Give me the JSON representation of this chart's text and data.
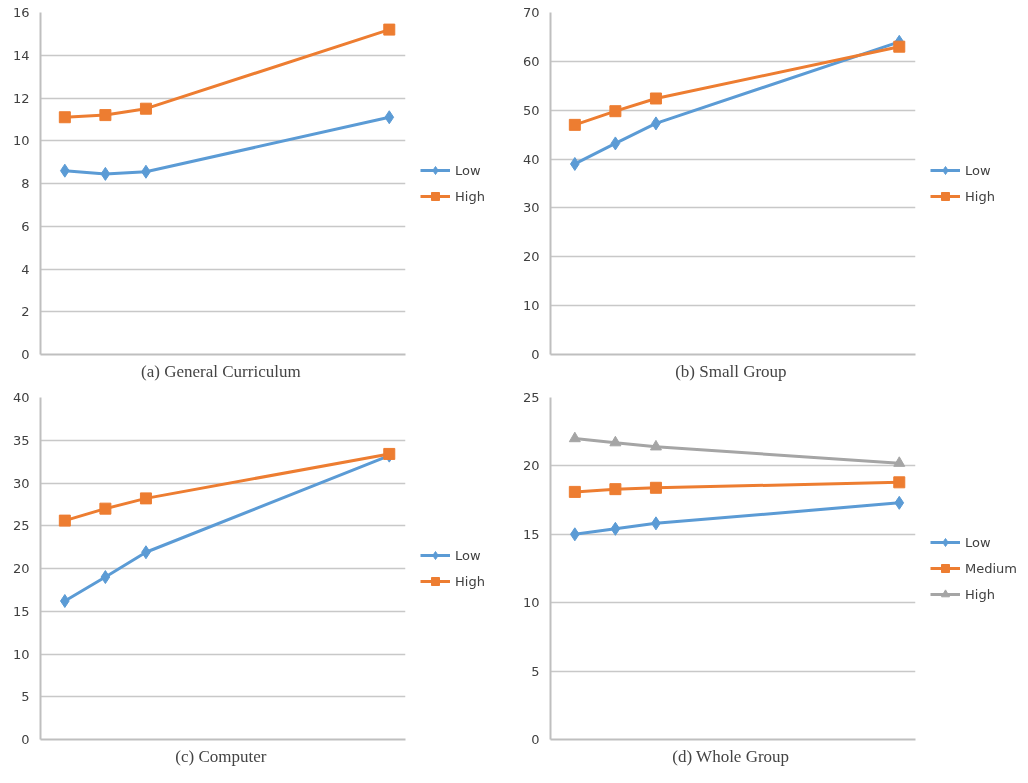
{
  "chart_data": [
    {
      "type": "line",
      "title": "(a)  General Curriculum",
      "categories": [
        null,
        null,
        null,
        null,
        null,
        null,
        null,
        null,
        null
      ],
      "ylim": [
        0,
        16
      ],
      "yticks": [
        0,
        2,
        4,
        6,
        8,
        10,
        12,
        14,
        16
      ],
      "grid": "y",
      "legend": "right",
      "series": [
        {
          "name": "Low",
          "color": "#5b9bd5",
          "marker": "diamond",
          "values": [
            8.6,
            8.45,
            8.55,
            null,
            null,
            null,
            null,
            null,
            11.1
          ]
        },
        {
          "name": "High",
          "color": "#ed7d31",
          "marker": "square",
          "values": [
            11.1,
            11.2,
            11.5,
            null,
            null,
            null,
            null,
            null,
            15.2
          ]
        }
      ]
    },
    {
      "type": "line",
      "title": "(b)  Small Group",
      "categories": [
        null,
        null,
        null,
        null,
        null,
        null,
        null,
        null,
        null
      ],
      "ylim": [
        0,
        70
      ],
      "yticks": [
        0,
        10,
        20,
        30,
        40,
        50,
        60,
        70
      ],
      "grid": "y",
      "legend": "right",
      "series": [
        {
          "name": "Low",
          "color": "#5b9bd5",
          "marker": "diamond",
          "values": [
            39,
            43.2,
            47.3,
            null,
            null,
            null,
            null,
            null,
            64
          ]
        },
        {
          "name": "High",
          "color": "#ed7d31",
          "marker": "square",
          "values": [
            47,
            49.8,
            52.4,
            null,
            null,
            null,
            null,
            null,
            63
          ]
        }
      ]
    },
    {
      "type": "line",
      "title": "(c)  Computer",
      "categories": [
        null,
        null,
        null,
        null,
        null,
        null,
        null,
        null,
        null
      ],
      "ylim": [
        0,
        40
      ],
      "yticks": [
        0,
        5,
        10,
        15,
        20,
        25,
        30,
        35,
        40
      ],
      "grid": "y",
      "legend": "right",
      "series": [
        {
          "name": "Low",
          "color": "#5b9bd5",
          "marker": "diamond",
          "values": [
            16.2,
            19.0,
            21.9,
            null,
            null,
            null,
            null,
            null,
            33.2
          ]
        },
        {
          "name": "High",
          "color": "#ed7d31",
          "marker": "square",
          "values": [
            25.6,
            27.0,
            28.2,
            null,
            null,
            null,
            null,
            null,
            33.4
          ]
        }
      ]
    },
    {
      "type": "line",
      "title": "(d)  Whole Group",
      "categories": [
        null,
        null,
        null,
        null,
        null,
        null,
        null,
        null,
        null
      ],
      "ylim": [
        0,
        25
      ],
      "yticks": [
        0,
        5,
        10,
        15,
        20,
        25
      ],
      "grid": "y",
      "legend": "right",
      "series": [
        {
          "name": "Low",
          "color": "#5b9bd5",
          "marker": "diamond",
          "values": [
            15.0,
            15.4,
            15.8,
            null,
            null,
            null,
            null,
            null,
            17.3
          ]
        },
        {
          "name": "Medium",
          "color": "#ed7d31",
          "marker": "square",
          "values": [
            18.1,
            18.3,
            18.4,
            null,
            null,
            null,
            null,
            null,
            18.8
          ]
        },
        {
          "name": "High",
          "color": "#a5a5a5",
          "marker": "triangle",
          "values": [
            22.0,
            21.7,
            21.4,
            null,
            null,
            null,
            null,
            null,
            20.2
          ]
        }
      ]
    }
  ]
}
